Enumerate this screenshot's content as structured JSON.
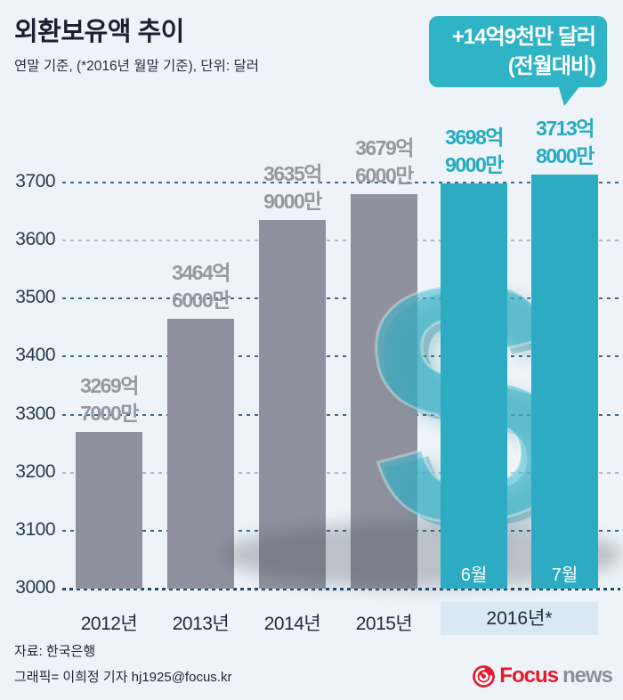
{
  "title": "외환보유액 추이",
  "subtitle": "연말 기준, (*2016년 월말 기준), 단위: 달러",
  "callout": {
    "line1": "+14억9천만 달러",
    "line2": "(전월대비)",
    "points_to": "2016년 7월"
  },
  "colors": {
    "background": "#edf3f8",
    "bar_gray": "#8f929e",
    "bar_teal": "#2cabc2",
    "label_gray": "#97989f",
    "label_teal": "#26abc0",
    "callout_teal": "#2fb4c5",
    "band_blue": "#d9e8f3",
    "navy_text": "#1a2231",
    "grid_navy": "#41688e",
    "logo_red": "#e8192c",
    "logo_gray": "#8a9098"
  },
  "chart_data": {
    "type": "bar",
    "title": "외환보유액 추이",
    "unit": "억 달러",
    "categories": [
      "2012년",
      "2013년",
      "2014년",
      "2015년",
      "2016년 6월",
      "2016년 7월"
    ],
    "values": [
      3269.7,
      3464.6,
      3635.9,
      3679.6,
      3698.9,
      3713.8
    ],
    "ylim": [
      3000,
      3700
    ],
    "yticks": [
      3700,
      3600,
      3500,
      3400,
      3300,
      3200,
      3100,
      3000
    ],
    "light_gridlines": [
      3600,
      3200
    ],
    "baseline_tick": 3000,
    "grid": "horizontal dashed",
    "x_group_label": "2016년*",
    "watermark": "$",
    "bars": [
      {
        "category": "2012년",
        "value": 3269.7,
        "label_line1": "3269억",
        "label_line2": "7000만",
        "style": "gray",
        "axis_label": "2012년",
        "month": null
      },
      {
        "category": "2013년",
        "value": 3464.6,
        "label_line1": "3464억",
        "label_line2": "6000만",
        "style": "gray",
        "axis_label": "2013년",
        "month": null
      },
      {
        "category": "2014년",
        "value": 3635.9,
        "label_line1": "3635억",
        "label_line2": "9000만",
        "style": "gray",
        "axis_label": "2014년",
        "month": null
      },
      {
        "category": "2015년",
        "value": 3679.6,
        "label_line1": "3679억",
        "label_line2": "6000만",
        "style": "gray",
        "axis_label": "2015년",
        "month": null
      },
      {
        "category": "2016년 6월",
        "value": 3698.9,
        "label_line1": "3698억",
        "label_line2": "9000만",
        "style": "teal",
        "axis_label": null,
        "month": "6월"
      },
      {
        "category": "2016년 7월",
        "value": 3713.8,
        "label_line1": "3713억",
        "label_line2": "8000만",
        "style": "teal",
        "axis_label": null,
        "month": "7월"
      }
    ]
  },
  "footer": {
    "source": "자료: 한국은행",
    "credit": "그래픽= 이희정 기자 hj1925@focus.kr",
    "logo": {
      "icon": "focus-swirl-icon",
      "text_primary": "Focus",
      "text_secondary": "news"
    }
  }
}
